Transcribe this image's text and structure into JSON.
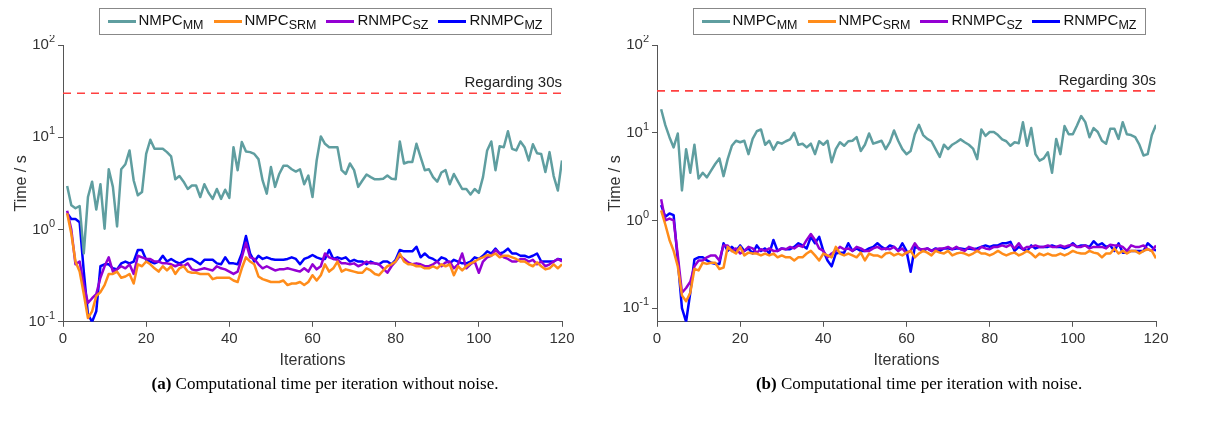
{
  "chart_data": [
    {
      "type": "line",
      "title": "(a) Computational time per iteration without noise.",
      "xlabel": "Iterations",
      "ylabel": "Time / s",
      "log": true,
      "legend": "top",
      "xlim": [
        0,
        120
      ],
      "xticks": [
        0,
        20,
        40,
        60,
        80,
        100,
        120
      ],
      "ylim": [
        0.1,
        100
      ],
      "yticks": [
        {
          "value": 0.1,
          "label": "10$^{-1}$"
        },
        {
          "value": 1,
          "label": "10$^{0}$"
        },
        {
          "value": 10,
          "label": "10$^{1}$"
        },
        {
          "value": 100,
          "label": "10$^{2}$"
        }
      ],
      "ref_lines": [
        {
          "axis": "y",
          "value": 30,
          "label": "Regarding 30s",
          "color": "#ff4040",
          "line_style": "dashed"
        }
      ],
      "x": [
        1,
        2,
        3,
        4,
        5,
        6,
        7,
        8,
        9,
        10,
        11,
        12,
        13,
        14,
        15,
        16,
        17,
        18,
        19,
        20,
        21,
        22,
        23,
        24,
        25,
        26,
        27,
        28,
        29,
        30,
        31,
        32,
        33,
        34,
        35,
        36,
        37,
        38,
        39,
        40,
        41,
        42,
        43,
        44,
        45,
        46,
        47,
        48,
        49,
        50,
        51,
        52,
        53,
        54,
        55,
        56,
        57,
        58,
        59,
        60,
        61,
        62,
        63,
        64,
        65,
        66,
        67,
        68,
        69,
        70,
        71,
        72,
        73,
        74,
        75,
        76,
        77,
        78,
        79,
        80,
        81,
        82,
        83,
        84,
        85,
        86,
        87,
        88,
        89,
        90,
        91,
        92,
        93,
        94,
        95,
        96,
        97,
        98,
        99,
        100,
        101,
        102,
        103,
        104,
        105,
        106,
        107,
        108,
        109,
        110,
        111,
        112,
        113,
        114,
        115,
        116,
        117,
        118,
        119,
        120
      ],
      "series": [
        {
          "name": "NMPC$_{MM}$",
          "color": "#5f9ea0",
          "values": [
            2.96,
            1.83,
            1.7,
            1.8,
            0.55,
            2.25,
            3.3,
            1.65,
            3.1,
            1.02,
            4.5,
            2.9,
            1.08,
            4.5,
            5.1,
            7.2,
            3.4,
            2.35,
            2.55,
            6.6,
            9.4,
            7.5,
            7.5,
            7.5,
            6.9,
            6.2,
            3.5,
            3.8,
            3.3,
            2.75,
            3.0,
            3.0,
            2.25,
            3.1,
            2.5,
            2.15,
            2.75,
            2.15,
            2.7,
            2.2,
            7.8,
            4.4,
            8.9,
            7.0,
            6.9,
            6.6,
            5.8,
            3.4,
            2.45,
            4.75,
            2.9,
            4.0,
            4.9,
            4.9,
            4.5,
            4.25,
            4.5,
            3.1,
            3.85,
            2.25,
            5.6,
            10.2,
            8.5,
            7.8,
            7.8,
            7.8,
            4.4,
            4.0,
            5.2,
            4.4,
            2.9,
            3.4,
            3.95,
            3.7,
            3.5,
            3.5,
            3.55,
            3.85,
            3.55,
            3.5,
            9.0,
            5.2,
            5.4,
            5.4,
            8.5,
            6.1,
            4.4,
            4.5,
            3.7,
            3.3,
            4.15,
            4.4,
            3.1,
            4.0,
            3.3,
            2.75,
            2.75,
            2.4,
            2.75,
            2.5,
            3.7,
            7.2,
            9.0,
            4.4,
            8.0,
            7.8,
            11.6,
            7.5,
            7.2,
            9.0,
            7.8,
            5.6,
            8.4,
            6.7,
            6.6,
            4.2,
            6.9,
            3.8,
            2.65,
            5.6
          ]
        },
        {
          "name": "NMPC$_{SRM}$",
          "color": "#ff8c1a",
          "values": [
            1.5,
            0.9,
            0.45,
            0.35,
            0.2,
            0.11,
            0.13,
            0.19,
            0.21,
            0.25,
            0.33,
            0.33,
            0.35,
            0.3,
            0.31,
            0.33,
            0.26,
            0.42,
            0.4,
            0.45,
            0.42,
            0.38,
            0.35,
            0.4,
            0.36,
            0.4,
            0.33,
            0.38,
            0.4,
            0.35,
            0.34,
            0.34,
            0.33,
            0.33,
            0.33,
            0.29,
            0.3,
            0.3,
            0.3,
            0.3,
            0.28,
            0.27,
            0.38,
            0.5,
            0.45,
            0.42,
            0.31,
            0.29,
            0.28,
            0.27,
            0.27,
            0.27,
            0.28,
            0.25,
            0.26,
            0.26,
            0.27,
            0.25,
            0.27,
            0.32,
            0.28,
            0.32,
            0.42,
            0.35,
            0.38,
            0.45,
            0.35,
            0.37,
            0.36,
            0.35,
            0.34,
            0.34,
            0.38,
            0.36,
            0.33,
            0.32,
            0.36,
            0.4,
            0.42,
            0.45,
            0.55,
            0.45,
            0.42,
            0.42,
            0.4,
            0.4,
            0.38,
            0.38,
            0.4,
            0.38,
            0.42,
            0.4,
            0.42,
            0.32,
            0.4,
            0.36,
            0.4,
            0.43,
            0.45,
            0.48,
            0.5,
            0.53,
            0.52,
            0.55,
            0.5,
            0.52,
            0.52,
            0.5,
            0.48,
            0.45,
            0.45,
            0.42,
            0.4,
            0.44,
            0.4,
            0.37,
            0.38,
            0.42,
            0.38,
            0.42
          ]
        },
        {
          "name": "RNMPC$_{SZ}$",
          "color": "#9400d3",
          "values": [
            1.6,
            1.0,
            0.42,
            0.45,
            0.25,
            0.16,
            0.18,
            0.2,
            0.3,
            0.4,
            0.5,
            0.35,
            0.37,
            0.4,
            0.38,
            0.42,
            0.33,
            0.52,
            0.5,
            0.48,
            0.48,
            0.45,
            0.45,
            0.43,
            0.43,
            0.42,
            0.4,
            0.42,
            0.4,
            0.43,
            0.37,
            0.36,
            0.37,
            0.38,
            0.37,
            0.36,
            0.4,
            0.38,
            0.37,
            0.35,
            0.33,
            0.35,
            0.5,
            0.72,
            0.5,
            0.48,
            0.42,
            0.38,
            0.4,
            0.38,
            0.36,
            0.37,
            0.37,
            0.38,
            0.37,
            0.36,
            0.35,
            0.38,
            0.35,
            0.42,
            0.37,
            0.4,
            0.55,
            0.5,
            0.48,
            0.47,
            0.43,
            0.43,
            0.42,
            0.43,
            0.4,
            0.42,
            0.45,
            0.43,
            0.43,
            0.42,
            0.38,
            0.34,
            0.4,
            0.45,
            0.52,
            0.48,
            0.44,
            0.42,
            0.43,
            0.42,
            0.4,
            0.4,
            0.42,
            0.45,
            0.4,
            0.44,
            0.45,
            0.38,
            0.42,
            0.55,
            0.38,
            0.42,
            0.45,
            0.34,
            0.45,
            0.5,
            0.52,
            0.6,
            0.55,
            0.5,
            0.48,
            0.45,
            0.45,
            0.48,
            0.48,
            0.45,
            0.47,
            0.42,
            0.45,
            0.4,
            0.42,
            0.45,
            0.48,
            0.45
          ]
        },
        {
          "name": "RNMPC$_{MZ}$",
          "color": "#0000ff",
          "values": [
            1.5,
            1.3,
            1.3,
            1.2,
            0.35,
            0.12,
            0.1,
            0.13,
            0.4,
            0.42,
            0.42,
            0.38,
            0.37,
            0.43,
            0.45,
            0.43,
            0.45,
            0.6,
            0.6,
            0.47,
            0.45,
            0.43,
            0.45,
            0.52,
            0.45,
            0.48,
            0.45,
            0.43,
            0.45,
            0.48,
            0.48,
            0.45,
            0.42,
            0.47,
            0.47,
            0.47,
            0.43,
            0.42,
            0.5,
            0.43,
            0.43,
            0.42,
            0.55,
            0.85,
            0.55,
            0.45,
            0.52,
            0.48,
            0.5,
            0.48,
            0.47,
            0.47,
            0.47,
            0.48,
            0.5,
            0.48,
            0.42,
            0.48,
            0.5,
            0.53,
            0.5,
            0.48,
            0.48,
            0.6,
            0.48,
            0.5,
            0.48,
            0.5,
            0.45,
            0.47,
            0.45,
            0.45,
            0.42,
            0.45,
            0.43,
            0.42,
            0.45,
            0.45,
            0.42,
            0.47,
            0.6,
            0.58,
            0.58,
            0.58,
            0.65,
            0.5,
            0.55,
            0.5,
            0.48,
            0.45,
            0.5,
            0.48,
            0.43,
            0.47,
            0.45,
            0.43,
            0.43,
            0.45,
            0.5,
            0.48,
            0.52,
            0.58,
            0.55,
            0.62,
            0.55,
            0.57,
            0.62,
            0.55,
            0.55,
            0.52,
            0.52,
            0.5,
            0.52,
            0.55,
            0.45,
            0.45,
            0.45,
            0.45,
            0.48,
            0.47
          ]
        }
      ]
    },
    {
      "type": "line",
      "title": "(b) Computational time per iteration with noise.",
      "xlabel": "Iterations",
      "ylabel": "Time / s",
      "log": true,
      "legend": "top",
      "xlim": [
        0,
        120
      ],
      "xticks": [
        0,
        20,
        40,
        60,
        80,
        100,
        120
      ],
      "ylim": [
        0.07,
        100
      ],
      "yticks": [
        {
          "value": 0.1,
          "label": "10$^{-1}$"
        },
        {
          "value": 1,
          "label": "10$^{0}$"
        },
        {
          "value": 10,
          "label": "10$^{1}$"
        },
        {
          "value": 100,
          "label": "10$^{2}$"
        }
      ],
      "ref_lines": [
        {
          "axis": "y",
          "value": 30,
          "label": "Regarding 30s",
          "color": "#ff4040",
          "line_style": "dashed"
        }
      ],
      "x": [
        1,
        2,
        3,
        4,
        5,
        6,
        7,
        8,
        9,
        10,
        11,
        12,
        13,
        14,
        15,
        16,
        17,
        18,
        19,
        20,
        21,
        22,
        23,
        24,
        25,
        26,
        27,
        28,
        29,
        30,
        31,
        32,
        33,
        34,
        35,
        36,
        37,
        38,
        39,
        40,
        41,
        42,
        43,
        44,
        45,
        46,
        47,
        48,
        49,
        50,
        51,
        52,
        53,
        54,
        55,
        56,
        57,
        58,
        59,
        60,
        61,
        62,
        63,
        64,
        65,
        66,
        67,
        68,
        69,
        70,
        71,
        72,
        73,
        74,
        75,
        76,
        77,
        78,
        79,
        80,
        81,
        82,
        83,
        84,
        85,
        86,
        87,
        88,
        89,
        90,
        91,
        92,
        93,
        94,
        95,
        96,
        97,
        98,
        99,
        100,
        101,
        102,
        103,
        104,
        105,
        106,
        107,
        108,
        109,
        110,
        111,
        112,
        113,
        114,
        115,
        116,
        117,
        118,
        119,
        120
      ],
      "series": [
        {
          "name": "NMPC$_{MM}$",
          "color": "#5f9ea0",
          "values": [
            18.5,
            12.2,
            8.9,
            6.8,
            9.8,
            2.2,
            6.5,
            3.5,
            7.3,
            3.0,
            3.5,
            3.1,
            3.7,
            4.4,
            5.1,
            3.2,
            5.0,
            7.1,
            8.1,
            7.8,
            8.1,
            5.7,
            8.5,
            10.4,
            10.9,
            7.3,
            8.1,
            6.4,
            7.8,
            7.5,
            8.0,
            8.4,
            10.0,
            7.3,
            7.5,
            6.8,
            7.5,
            5.7,
            8.0,
            7.3,
            8.1,
            4.6,
            6.5,
            7.8,
            7.1,
            8.0,
            8.1,
            8.9,
            6.2,
            7.3,
            9.8,
            7.5,
            7.8,
            8.1,
            6.5,
            7.8,
            10.6,
            8.1,
            6.5,
            5.7,
            6.2,
            9.6,
            12.3,
            9.4,
            8.5,
            8.0,
            6.5,
            5.3,
            7.3,
            6.5,
            7.3,
            7.8,
            8.4,
            7.8,
            7.3,
            6.6,
            5.0,
            10.9,
            9.2,
            10.2,
            10.2,
            9.4,
            8.4,
            8.0,
            7.1,
            7.8,
            7.6,
            13.2,
            7.1,
            11.3,
            5.7,
            4.8,
            5.1,
            6.0,
            3.5,
            8.5,
            5.7,
            11.9,
            9.6,
            9.6,
            12.1,
            15.5,
            13.2,
            8.9,
            11.3,
            10.2,
            8.1,
            7.5,
            11.1,
            11.1,
            8.5,
            13.2,
            9.6,
            9.4,
            8.9,
            7.3,
            5.5,
            5.7,
            9.4,
            12.3
          ]
        },
        {
          "name": "NMPC$_{SRM}$",
          "color": "#ff8c1a",
          "values": [
            1.3,
            0.9,
            0.6,
            0.45,
            0.3,
            0.14,
            0.12,
            0.15,
            0.28,
            0.27,
            0.33,
            0.32,
            0.33,
            0.33,
            0.28,
            0.29,
            0.5,
            0.45,
            0.42,
            0.5,
            0.4,
            0.43,
            0.42,
            0.42,
            0.4,
            0.42,
            0.4,
            0.42,
            0.38,
            0.4,
            0.38,
            0.38,
            0.35,
            0.38,
            0.38,
            0.42,
            0.45,
            0.4,
            0.35,
            0.42,
            0.4,
            0.38,
            0.5,
            0.42,
            0.4,
            0.42,
            0.4,
            0.38,
            0.43,
            0.35,
            0.42,
            0.4,
            0.4,
            0.38,
            0.42,
            0.43,
            0.4,
            0.42,
            0.4,
            0.43,
            0.45,
            0.38,
            0.42,
            0.45,
            0.43,
            0.4,
            0.45,
            0.43,
            0.42,
            0.45,
            0.4,
            0.42,
            0.43,
            0.42,
            0.4,
            0.42,
            0.45,
            0.42,
            0.42,
            0.4,
            0.42,
            0.45,
            0.42,
            0.4,
            0.42,
            0.43,
            0.4,
            0.42,
            0.45,
            0.42,
            0.38,
            0.42,
            0.4,
            0.42,
            0.4,
            0.4,
            0.42,
            0.4,
            0.42,
            0.45,
            0.43,
            0.42,
            0.42,
            0.45,
            0.43,
            0.42,
            0.38,
            0.42,
            0.42,
            0.48,
            0.42,
            0.45,
            0.42,
            0.45,
            0.45,
            0.42,
            0.45,
            0.47,
            0.45,
            0.37
          ]
        },
        {
          "name": "RNMPC$_{SZ}$",
          "color": "#9400d3",
          "values": [
            1.75,
            1.0,
            1.05,
            1.0,
            0.4,
            0.15,
            0.17,
            0.2,
            0.3,
            0.35,
            0.35,
            0.38,
            0.4,
            0.4,
            0.35,
            0.52,
            0.52,
            0.45,
            0.48,
            0.42,
            0.45,
            0.5,
            0.48,
            0.43,
            0.47,
            0.45,
            0.48,
            0.45,
            0.45,
            0.48,
            0.47,
            0.5,
            0.48,
            0.52,
            0.5,
            0.6,
            0.7,
            0.6,
            0.48,
            0.45,
            0.38,
            0.42,
            0.45,
            0.5,
            0.47,
            0.48,
            0.45,
            0.5,
            0.48,
            0.45,
            0.45,
            0.48,
            0.5,
            0.47,
            0.48,
            0.47,
            0.5,
            0.45,
            0.48,
            0.42,
            0.45,
            0.55,
            0.47,
            0.47,
            0.48,
            0.45,
            0.47,
            0.48,
            0.48,
            0.5,
            0.47,
            0.5,
            0.47,
            0.45,
            0.5,
            0.48,
            0.45,
            0.5,
            0.48,
            0.47,
            0.5,
            0.5,
            0.52,
            0.5,
            0.53,
            0.48,
            0.55,
            0.47,
            0.5,
            0.5,
            0.52,
            0.5,
            0.5,
            0.52,
            0.5,
            0.5,
            0.52,
            0.5,
            0.52,
            0.53,
            0.5,
            0.5,
            0.52,
            0.48,
            0.5,
            0.5,
            0.5,
            0.48,
            0.53,
            0.52,
            0.52,
            0.5,
            0.45,
            0.52,
            0.5,
            0.5,
            0.52,
            0.47,
            0.45,
            0.52
          ]
        },
        {
          "name": "RNMPC$_{MZ}$",
          "color": "#0000ff",
          "values": [
            1.5,
            1.1,
            1.2,
            1.15,
            0.35,
            0.1,
            0.07,
            0.15,
            0.36,
            0.38,
            0.38,
            0.35,
            0.33,
            0.32,
            0.32,
            0.55,
            0.45,
            0.5,
            0.45,
            0.52,
            0.45,
            0.48,
            0.42,
            0.52,
            0.45,
            0.48,
            0.42,
            0.6,
            0.45,
            0.48,
            0.47,
            0.47,
            0.5,
            0.55,
            0.52,
            0.48,
            0.65,
            0.55,
            0.65,
            0.45,
            0.35,
            0.3,
            0.42,
            0.43,
            0.43,
            0.55,
            0.45,
            0.48,
            0.45,
            0.45,
            0.48,
            0.5,
            0.55,
            0.5,
            0.47,
            0.52,
            0.5,
            0.45,
            0.55,
            0.45,
            0.26,
            0.5,
            0.48,
            0.45,
            0.48,
            0.45,
            0.48,
            0.45,
            0.48,
            0.48,
            0.47,
            0.48,
            0.48,
            0.47,
            0.48,
            0.47,
            0.48,
            0.5,
            0.52,
            0.5,
            0.52,
            0.52,
            0.55,
            0.55,
            0.57,
            0.45,
            0.5,
            0.47,
            0.45,
            0.52,
            0.48,
            0.5,
            0.5,
            0.5,
            0.52,
            0.5,
            0.5,
            0.48,
            0.5,
            0.55,
            0.5,
            0.52,
            0.52,
            0.5,
            0.58,
            0.52,
            0.55,
            0.5,
            0.52,
            0.45,
            0.55,
            0.43,
            0.43,
            0.45,
            0.45,
            0.45,
            0.45,
            0.55,
            0.5,
            0.45
          ]
        }
      ]
    }
  ]
}
